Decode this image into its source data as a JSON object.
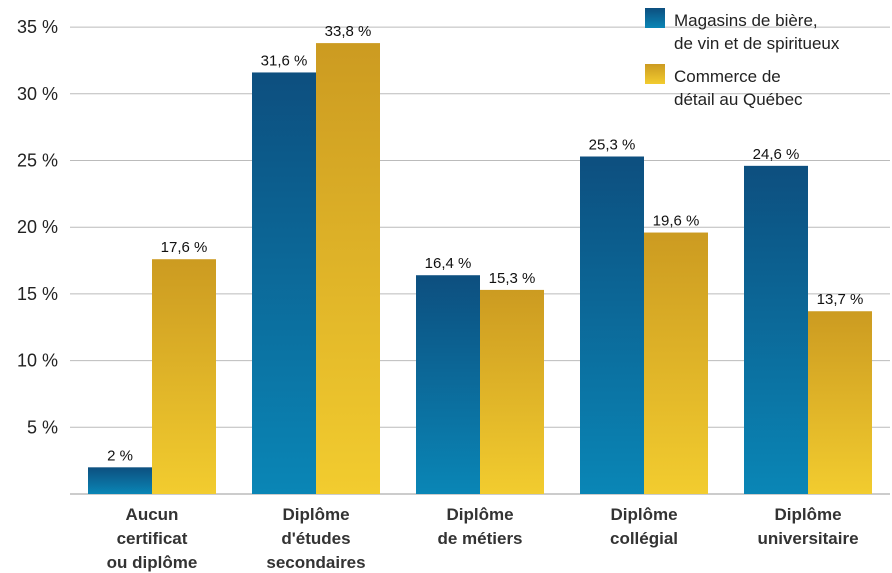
{
  "chart_data": {
    "type": "bar",
    "title": "",
    "xlabel": "",
    "ylabel": "",
    "ylim": [
      0,
      35
    ],
    "yticks": [
      5,
      10,
      15,
      20,
      25,
      30,
      35
    ],
    "ytick_labels": [
      "5 %",
      "10 %",
      "15 %",
      "20 %",
      "25 %",
      "30 %",
      "35 %"
    ],
    "grid": true,
    "legend_position": "top-right",
    "categories": [
      [
        "Aucun",
        "certificat",
        "ou diplôme"
      ],
      [
        "Diplôme",
        "d'études",
        "secondaires"
      ],
      [
        "Diplôme",
        "de métiers"
      ],
      [
        "Diplôme",
        "collégial"
      ],
      [
        "Diplôme",
        "universitaire"
      ]
    ],
    "series": [
      {
        "name": [
          "Magasins de bière,",
          "de vin et de spiritueux"
        ],
        "values": [
          2,
          31.6,
          16.4,
          25.3,
          24.6
        ],
        "labels": [
          "2 %",
          "31,6 %",
          "16,4 %",
          "25,3 %",
          "24,6 %"
        ],
        "color_top": "#0d4f7f",
        "color_bottom": "#0a86b6"
      },
      {
        "name": [
          "Commerce de",
          "détail au Québec"
        ],
        "values": [
          17.6,
          33.8,
          15.3,
          19.6,
          13.7
        ],
        "labels": [
          "17,6 %",
          "33,8 %",
          "15,3 %",
          "19,6 %",
          "13,7 %"
        ],
        "color_top": "#cc9b21",
        "color_bottom": "#f2cc2f"
      }
    ]
  }
}
